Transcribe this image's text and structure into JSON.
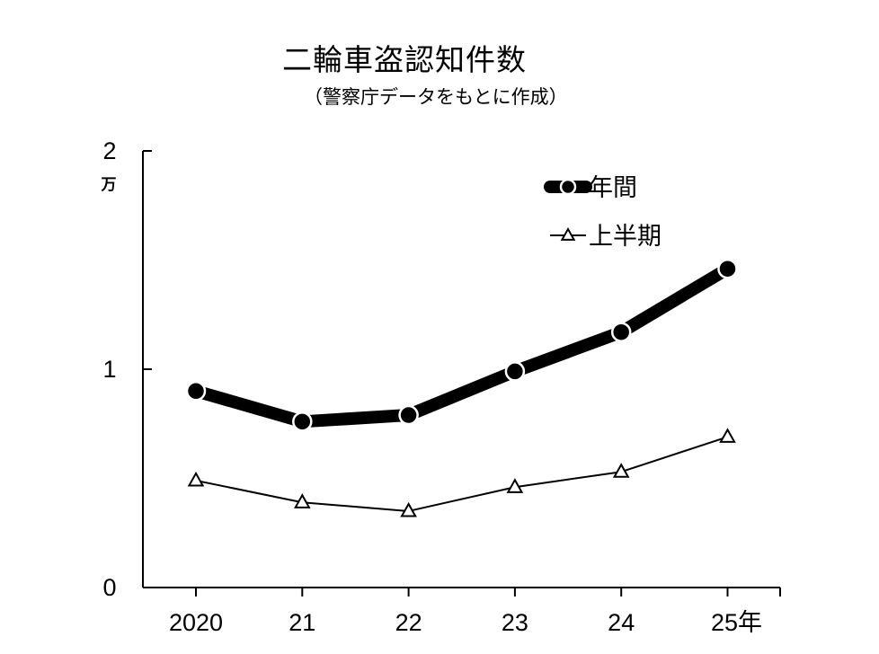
{
  "chart_data": {
    "type": "line",
    "title": "二輪車盗認知件数",
    "subtitle": "（警察庁データをもとに作成）",
    "categories": [
      "2020",
      "21",
      "22",
      "23",
      "24",
      "25年"
    ],
    "y_unit": "万",
    "ylim": [
      0,
      2
    ],
    "yticks": [
      "0",
      "1",
      "2"
    ],
    "grid": false,
    "legend_position": "top-right",
    "series": [
      {
        "name": "年間",
        "marker": "circle",
        "style": "thick",
        "color": "#000000",
        "values": [
          0.9,
          0.76,
          0.79,
          0.99,
          1.17,
          1.46
        ]
      },
      {
        "name": "上半期",
        "marker": "triangle-open",
        "style": "thin",
        "color": "#000000",
        "values": [
          0.49,
          0.39,
          0.35,
          0.46,
          0.53,
          0.69
        ]
      }
    ]
  }
}
